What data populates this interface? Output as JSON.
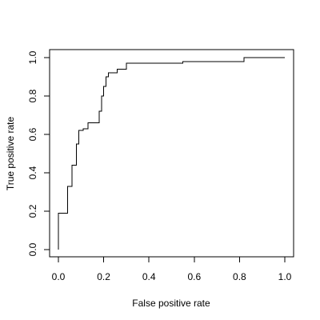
{
  "chart_data": {
    "type": "line",
    "title": "",
    "xlabel": "False positive rate",
    "ylabel": "True positive rate",
    "xlim": [
      0,
      1
    ],
    "ylim": [
      0,
      1
    ],
    "x_ticks": [
      "0.0",
      "0.2",
      "0.4",
      "0.6",
      "0.8",
      "1.0"
    ],
    "y_ticks": [
      "0.0",
      "0.2",
      "0.4",
      "0.6",
      "0.8",
      "1.0"
    ],
    "grid": false,
    "legend": "none",
    "line_color": "#000000",
    "series": [
      {
        "step": true,
        "points": [
          [
            0.0,
            0.0
          ],
          [
            0.0,
            0.19
          ],
          [
            0.04,
            0.19
          ],
          [
            0.04,
            0.33
          ],
          [
            0.06,
            0.33
          ],
          [
            0.06,
            0.44
          ],
          [
            0.08,
            0.44
          ],
          [
            0.08,
            0.55
          ],
          [
            0.09,
            0.55
          ],
          [
            0.09,
            0.62
          ],
          [
            0.11,
            0.62
          ],
          [
            0.11,
            0.63
          ],
          [
            0.13,
            0.63
          ],
          [
            0.13,
            0.66
          ],
          [
            0.18,
            0.66
          ],
          [
            0.18,
            0.72
          ],
          [
            0.19,
            0.72
          ],
          [
            0.19,
            0.8
          ],
          [
            0.2,
            0.8
          ],
          [
            0.2,
            0.85
          ],
          [
            0.21,
            0.85
          ],
          [
            0.21,
            0.9
          ],
          [
            0.22,
            0.9
          ],
          [
            0.22,
            0.92
          ],
          [
            0.26,
            0.92
          ],
          [
            0.26,
            0.94
          ],
          [
            0.3,
            0.94
          ],
          [
            0.3,
            0.97
          ],
          [
            0.55,
            0.97
          ],
          [
            0.55,
            0.98
          ],
          [
            0.82,
            0.98
          ],
          [
            0.82,
            1.0
          ],
          [
            1.0,
            1.0
          ]
        ]
      }
    ]
  }
}
